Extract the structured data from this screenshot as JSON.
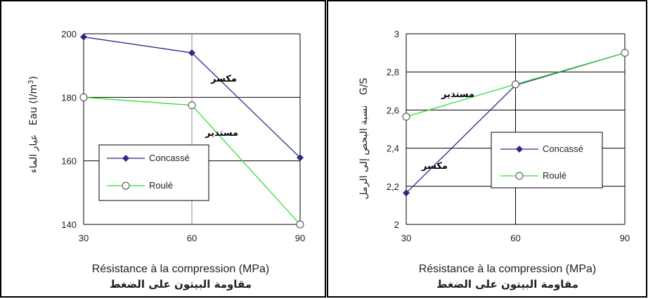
{
  "colors": {
    "concasse": "#2b2b8c",
    "roule": "#33dd33",
    "grid": "#000000",
    "axis_gray": "#888888",
    "panel_border": "#000000"
  },
  "chart_data": [
    {
      "type": "line",
      "x": [
        30,
        60,
        90
      ],
      "xticks": [
        "30",
        "60",
        "90"
      ],
      "yticks": [
        "140",
        "160",
        "180",
        "200"
      ],
      "xlim": [
        30,
        90
      ],
      "ylim": [
        140,
        200
      ],
      "xlabel": "Résistance à la compression (MPa)",
      "xlabel_ar": "مقاومة البيتون على الضغط",
      "ylabel_fr": "Eau (l/m",
      "ylabel_sup": "3",
      "ylabel_close": ")",
      "ylabel_ar": "عيار الماء",
      "series": [
        {
          "name": "Concassé",
          "values": [
            199,
            194,
            161
          ],
          "color": "#2b2b8c",
          "marker": "diamond-filled"
        },
        {
          "name": "Roulé",
          "values": [
            180,
            177.5,
            140
          ],
          "color": "#33dd33",
          "marker": "circle-open"
        }
      ],
      "annotations": [
        "مكسر",
        "مستدير"
      ],
      "legend": "center-left"
    },
    {
      "type": "line",
      "x": [
        30,
        60,
        90
      ],
      "xticks": [
        "30",
        "60",
        "90"
      ],
      "yticks": [
        "2",
        "2,2",
        "2,4",
        "2,6",
        "2,8",
        "3"
      ],
      "xlim": [
        30,
        90
      ],
      "ylim": [
        2,
        3
      ],
      "xlabel": "Résistance à la compression (MPa)",
      "xlabel_ar": "مقاومة البيتون على الضغط",
      "ylabel_fr": "G/S",
      "ylabel_ar": "نسبة البحص إلى الرمل",
      "series": [
        {
          "name": "Concassé",
          "values": [
            2.165,
            2.73,
            2.9
          ],
          "color": "#2b2b8c",
          "marker": "diamond-filled"
        },
        {
          "name": "Roulé",
          "values": [
            2.565,
            2.735,
            2.9
          ],
          "color": "#33dd33",
          "marker": "circle-open"
        }
      ],
      "annotations": [
        "مستدير",
        "مكسر"
      ],
      "legend": "center-right"
    }
  ]
}
